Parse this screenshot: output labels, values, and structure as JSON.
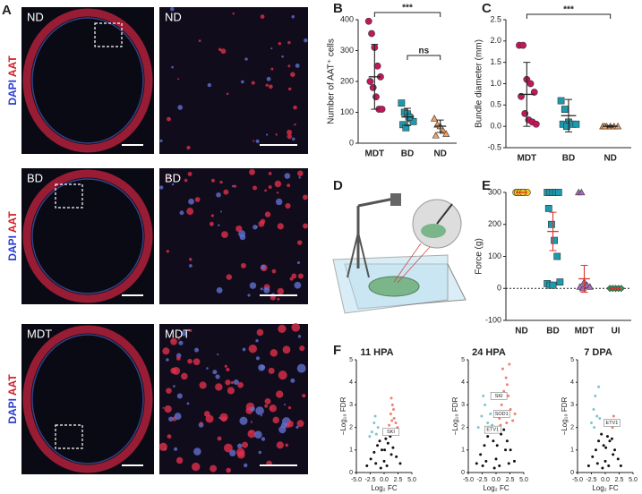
{
  "panel_letters": [
    "A",
    "B",
    "C",
    "D",
    "E",
    "F"
  ],
  "panel_a": {
    "rows": [
      "ND",
      "BD",
      "MDT"
    ],
    "stain_dapi": "DAPI",
    "stain_aat": "AAT"
  },
  "chart_data": [
    {
      "type": "dot",
      "ylabel": "Number of AAT⁺ cells",
      "categories": [
        "MDT",
        "BD",
        "ND"
      ],
      "ylim": [
        0,
        400
      ],
      "yticks": [
        0,
        100,
        200,
        300,
        400
      ],
      "points": [
        [
          395,
          355,
          310,
          250,
          215,
          200,
          180,
          150,
          110,
          110
        ],
        [
          130,
          100,
          95,
          80,
          70,
          60,
          50,
          85
        ],
        [
          80,
          60,
          55,
          40,
          30,
          25
        ]
      ],
      "means": [
        215,
        85,
        55
      ],
      "errors": [
        105,
        28,
        20
      ],
      "colors": [
        "#c2185b",
        "#1a9bb0",
        "#f0a060"
      ],
      "markers": [
        "circle",
        "square",
        "triangle"
      ],
      "error_color": "#222",
      "annotations": [
        {
          "text": "***",
          "from": 0,
          "to": 2
        },
        {
          "text": "ns",
          "from": 1,
          "to": 2
        }
      ]
    },
    {
      "type": "dot",
      "ylabel": "Bundle diameter (mm)",
      "categories": [
        "MDT",
        "BD",
        "ND"
      ],
      "ylim": [
        -0.5,
        2.5
      ],
      "yticks": [
        -0.5,
        {
          "value": 0,
          "label": "0.0"
        },
        0.5,
        {
          "value": 1,
          "label": "1.0"
        },
        1.5,
        {
          "value": 2,
          "label": "2.0"
        },
        2.5
      ],
      "points": [
        [
          1.9,
          1.9,
          1.1,
          1.0,
          0.8,
          0.7,
          0.3,
          0.15,
          0.1,
          0.05
        ],
        [
          0.6,
          0.4,
          0.1,
          0.05,
          0.05,
          0.05,
          0.0
        ],
        [
          0,
          0,
          0,
          0,
          0,
          0
        ]
      ],
      "means": [
        0.75,
        0.25,
        0.0
      ],
      "errors": [
        0.75,
        0.38,
        0.02
      ],
      "colors": [
        "#c2185b",
        "#1a9bb0",
        "#f0a060"
      ],
      "markers": [
        "circle",
        "square",
        "triangle"
      ],
      "error_color": "#222",
      "annotations": [
        {
          "text": "***",
          "from": 0,
          "to": 2
        }
      ]
    },
    {
      "type": "dot",
      "ylabel": "Force (g)",
      "categories": [
        "ND",
        "BD",
        "MDT",
        "UI"
      ],
      "ylim": [
        -100,
        300
      ],
      "yticks": [
        -100,
        0,
        100,
        200,
        300
      ],
      "zero_line": true,
      "points": [
        [
          300,
          300,
          300,
          300,
          300,
          300,
          300,
          300
        ],
        [
          300,
          300,
          300,
          300,
          300,
          250,
          200,
          150,
          100,
          20,
          15,
          10,
          10
        ],
        [
          300,
          300,
          20,
          10,
          5,
          5,
          0
        ],
        [
          0,
          0,
          0,
          0,
          0
        ]
      ],
      "means": [
        300,
        178,
        30,
        0
      ],
      "errors": [
        0,
        60,
        42,
        0
      ],
      "colors": [
        "#f5c518",
        "#1a9bb0",
        "#a868b8",
        "#2e9b5a"
      ],
      "markers": [
        "circle",
        "square",
        "triangle",
        "diamond"
      ],
      "error_color": "#d9342b",
      "annotations": []
    },
    {
      "type": "volcano",
      "title": "11 HPA",
      "ylabel": "−Log₁₀ FDR",
      "xlabel": "Log₂ FC",
      "xlim": [
        -5,
        5
      ],
      "ylim": [
        0,
        5
      ],
      "yticks": [
        0,
        1,
        2,
        3,
        4,
        5
      ],
      "xticks": [
        {
          "value": -5,
          "label": "-5.0"
        },
        -2.5,
        {
          "value": 0,
          "label": "0.0"
        },
        2.5,
        {
          "value": 5,
          "label": "5.0"
        }
      ],
      "series": [
        {
          "color": "#111",
          "x": [
            -3.1,
            -2.4,
            -1.8,
            -1.2,
            -0.8,
            -0.4,
            0,
            0.3,
            0.7,
            1.1,
            1.6,
            2.2,
            2.9,
            -0.6,
            0.5,
            -1.5,
            1.3,
            0.1
          ],
          "values": [
            0.3,
            0.6,
            0.9,
            1.2,
            1.4,
            1.0,
            0.5,
            1.5,
            1.3,
            1.6,
            1.1,
            0.7,
            0.4,
            0.2,
            0.3,
            0.4,
            0.8,
            1.0
          ]
        },
        {
          "color": "#f08070",
          "x": [
            0.9,
            1.2,
            1.5,
            1.8,
            2.1,
            1.3,
            1.0,
            1.7,
            2.4,
            1.4
          ],
          "values": [
            2.1,
            2.6,
            3.0,
            2.4,
            2.2,
            3.3,
            1.9,
            2.8,
            2.0,
            2.3
          ]
        },
        {
          "color": "#7fc4d4",
          "x": [
            -2.2,
            -1.8,
            -1.4,
            -1.1,
            -2.6,
            -1.6
          ],
          "values": [
            1.8,
            2.2,
            1.7,
            2.0,
            1.6,
            2.5
          ]
        }
      ],
      "genes": [
        {
          "text": "SKI",
          "x": 1.2,
          "y": 1.8
        }
      ]
    },
    {
      "type": "volcano",
      "title": "24 HPA",
      "ylabel": "−Log₁₀ FDR",
      "xlabel": "Log₂ FC",
      "xlim": [
        -5,
        5
      ],
      "ylim": [
        0,
        5
      ],
      "yticks": [
        0,
        1,
        2,
        3,
        4,
        5
      ],
      "xticks": [
        {
          "value": -5,
          "label": "-5.0"
        },
        -2.5,
        {
          "value": 0,
          "label": "0.0"
        },
        2.5,
        {
          "value": 5,
          "label": "5.0"
        }
      ],
      "series": [
        {
          "color": "#111",
          "x": [
            -3.5,
            -2.8,
            -2.1,
            -1.5,
            -1.0,
            -0.5,
            0,
            0.4,
            0.9,
            1.4,
            2.0,
            2.6,
            3.3,
            -0.3,
            0.6,
            -1.8,
            1.7,
            0.2,
            -2.4,
            2.3
          ],
          "values": [
            0.4,
            0.8,
            1.2,
            1.6,
            1.9,
            1.4,
            0.6,
            1.8,
            1.7,
            1.9,
            1.4,
            1.0,
            0.5,
            0.2,
            0.3,
            0.5,
            1.0,
            1.2,
            0.3,
            0.4
          ]
        },
        {
          "color": "#f08070",
          "x": [
            0.6,
            1.0,
            1.4,
            1.8,
            2.2,
            2.6,
            3.0,
            1.2,
            1.6,
            2.0,
            2.4,
            0.8,
            3.4,
            1.9
          ],
          "values": [
            2.4,
            3.0,
            3.6,
            4.2,
            3.4,
            2.8,
            2.3,
            4.6,
            2.6,
            3.9,
            4.8,
            2.1,
            2.6,
            2.2
          ]
        },
        {
          "color": "#7fc4d4",
          "x": [
            -3.2,
            -2.6,
            -2.0,
            -1.5,
            -1.0,
            -2.3,
            -0.7,
            -1.8
          ],
          "values": [
            2.0,
            2.5,
            3.0,
            2.2,
            2.6,
            3.4,
            2.1,
            1.9
          ]
        }
      ],
      "genes": [
        {
          "text": "SKI",
          "x": 0.5,
          "y": 3.4
        },
        {
          "text": "SOD1",
          "x": 1.0,
          "y": 2.6
        },
        {
          "text": "ETV1",
          "x": -0.6,
          "y": 1.9
        }
      ]
    },
    {
      "type": "volcano",
      "title": "7 DPA",
      "ylabel": "−Log₁₀ FDR",
      "xlabel": "Log₂ FC",
      "xlim": [
        -5,
        5
      ],
      "ylim": [
        0,
        5
      ],
      "yticks": [
        0,
        1,
        2,
        3,
        4,
        5
      ],
      "xticks": [
        {
          "value": -5,
          "label": "-5.0"
        },
        -2.5,
        {
          "value": 0,
          "label": "0.0"
        },
        2.5,
        {
          "value": 5,
          "label": "5.0"
        }
      ],
      "series": [
        {
          "color": "#111",
          "x": [
            -3.0,
            -2.3,
            -1.7,
            -1.2,
            -0.7,
            -0.3,
            0,
            0.4,
            0.8,
            1.2,
            1.7,
            2.3,
            2.8,
            -0.5,
            0.6,
            -1.4,
            1.4,
            0.1
          ],
          "values": [
            0.3,
            0.7,
            1.0,
            1.4,
            1.7,
            1.2,
            0.5,
            1.6,
            1.4,
            1.5,
            1.0,
            0.6,
            0.3,
            0.2,
            0.3,
            0.4,
            0.8,
            1.1
          ]
        },
        {
          "color": "#f08070",
          "x": [
            1.0,
            1.3,
            1.5
          ],
          "values": [
            2.3,
            2.0,
            2.5
          ]
        },
        {
          "color": "#7fc4d4",
          "x": [
            -2.5,
            -2.1,
            -1.8,
            -1.5,
            -1.2,
            -2.0,
            -1.0
          ],
          "values": [
            2.2,
            2.8,
            3.4,
            2.5,
            3.8,
            2.0,
            2.4
          ]
        }
      ],
      "genes": [
        {
          "text": "ETV1",
          "x": 1.2,
          "y": 2.2
        }
      ]
    }
  ]
}
